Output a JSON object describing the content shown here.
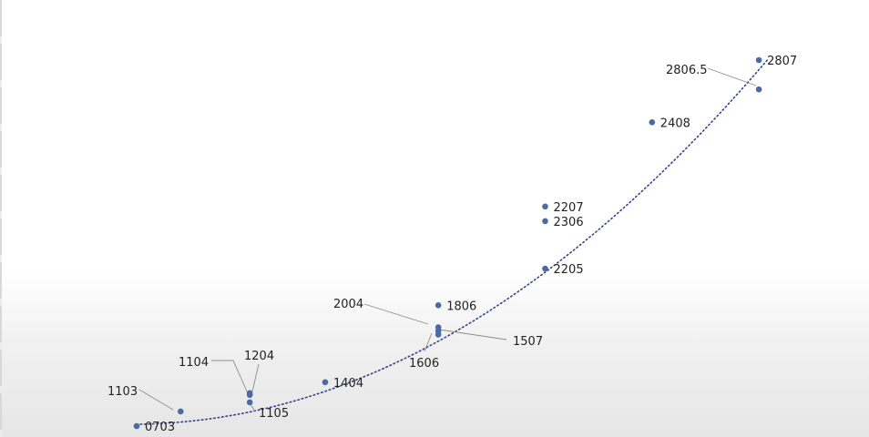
{
  "chart_data": {
    "type": "scatter",
    "title": "",
    "xlabel": "",
    "ylabel": "",
    "grid": false,
    "legend": "none",
    "trendline": "exponential",
    "colors": {
      "marker": "#4a6aa5",
      "trendline": "#33458a",
      "leader": "#8c8c8c"
    },
    "points": [
      {
        "label": "0703",
        "x": 0.0,
        "y": 0.0
      },
      {
        "label": "1103",
        "x": 0.07,
        "y": 0.04
      },
      {
        "label": "1104",
        "x": 0.18,
        "y": 0.09
      },
      {
        "label": "1204",
        "x": 0.18,
        "y": 0.085
      },
      {
        "label": "1105",
        "x": 0.18,
        "y": 0.065
      },
      {
        "label": "1404",
        "x": 0.3,
        "y": 0.12
      },
      {
        "label": "2004",
        "x": 0.48,
        "y": 0.27
      },
      {
        "label": "1507",
        "x": 0.48,
        "y": 0.26
      },
      {
        "label": "1606",
        "x": 0.48,
        "y": 0.25
      },
      {
        "label": "1806",
        "x": 0.48,
        "y": 0.33
      },
      {
        "label": "2205",
        "x": 0.65,
        "y": 0.43
      },
      {
        "label": "2306",
        "x": 0.65,
        "y": 0.56
      },
      {
        "label": "2207",
        "x": 0.65,
        "y": 0.6
      },
      {
        "label": "2408",
        "x": 0.82,
        "y": 0.83
      },
      {
        "label": "2806.5",
        "x": 0.99,
        "y": 0.92
      },
      {
        "label": "2807",
        "x": 0.99,
        "y": 1.0
      }
    ]
  }
}
